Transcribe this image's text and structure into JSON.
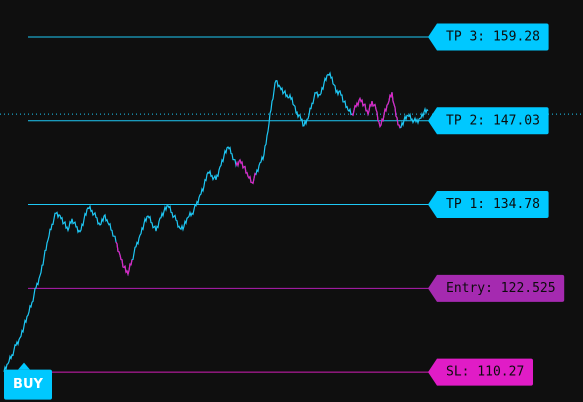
{
  "chart_data": {
    "type": "line",
    "y_range": [
      105.9,
      164.7
    ],
    "colors": {
      "background": "#0f0f0f",
      "price_up": "#1ec8f5",
      "price_down": "#e020c0",
      "tp_line": "#1ec8f5",
      "entry_line": "#b21fb3",
      "sl_line": "#d41fb8",
      "tp_label_bg": "#00c8ff",
      "entry_label_bg": "#a52ab0",
      "sl_label_bg": "#e01cc6",
      "label_text": "#0c0c0c",
      "dotted_line": "#1ec8f5"
    },
    "levels": [
      {
        "key": "tp3",
        "label": "TP 3: 159.28",
        "value": 159.28
      },
      {
        "key": "tp2",
        "label": "TP 2: 147.03",
        "value": 147.03
      },
      {
        "key": "tp1",
        "label": "TP 1: 134.78",
        "value": 134.78
      },
      {
        "key": "entry",
        "label": "Entry: 122.525",
        "value": 122.525
      },
      {
        "key": "sl",
        "label": "SL: 110.27",
        "value": 110.27
      }
    ],
    "current_price": 148.0,
    "signal": {
      "label": "BUY",
      "price": 111.8
    },
    "series": [
      {
        "values": [
          110.3,
          111.5,
          112.8,
          114.2,
          115.3,
          117.0,
          118.6,
          120.5,
          122.6,
          124.4,
          127.0,
          129.6,
          131.9,
          133.5,
          133.2,
          132.1,
          131.0,
          132.7,
          131.5,
          130.8,
          132.6,
          134.3,
          133.9,
          132.9,
          131.8,
          133.1,
          132.1,
          131.0,
          129.3,
          127.4,
          125.6,
          124.6,
          126.7,
          128.6,
          130.3,
          132.0,
          133.1,
          132.1,
          130.9,
          132.8,
          133.8,
          134.6,
          133.6,
          132.5,
          131.3,
          131.6,
          132.9,
          133.5,
          134.6,
          136.2,
          137.5,
          139.5,
          139.0,
          138.4,
          140.3,
          141.9,
          143.2,
          142.2,
          140.5,
          141.3,
          140.3,
          138.9,
          138.0,
          139.2,
          140.9,
          142.1,
          145.5,
          149.9,
          152.9,
          152.0,
          151.2,
          150.4,
          150.4,
          148.2,
          147.8,
          146.3,
          147.3,
          149.6,
          151.1,
          150.8,
          152.5,
          153.8,
          153.4,
          151.2,
          151.4,
          149.8,
          148.6,
          148.0,
          149.1,
          150.3,
          149.4,
          148.0,
          149.9,
          148.7,
          146.2,
          147.9,
          149.5,
          151.2,
          147.7,
          146.0,
          147.1,
          147.8,
          147.3,
          146.9,
          147.4,
          148.3,
          148.5
        ]
      },
      {
        "values": [
          null,
          null,
          null,
          null,
          null,
          null,
          null,
          null,
          null,
          null,
          null,
          null,
          null,
          null,
          null,
          null,
          null,
          null,
          null,
          null,
          null,
          null,
          null,
          null,
          null,
          null,
          null,
          null,
          129.3,
          127.4,
          125.6,
          124.6,
          126.7,
          null,
          null,
          null,
          null,
          null,
          null,
          null,
          null,
          null,
          null,
          null,
          null,
          null,
          null,
          null,
          null,
          null,
          null,
          null,
          null,
          null,
          null,
          null,
          null,
          null,
          140.5,
          141.3,
          140.3,
          138.9,
          138.0,
          139.2,
          null,
          null,
          null,
          null,
          null,
          null,
          null,
          null,
          null,
          null,
          null,
          null,
          null,
          null,
          null,
          null,
          null,
          null,
          null,
          null,
          null,
          null,
          null,
          148.0,
          149.1,
          150.3,
          149.4,
          148.0,
          149.9,
          148.7,
          146.2,
          147.9,
          149.5,
          151.2,
          147.7,
          146.0,
          null,
          null,
          null,
          null,
          null,
          null
        ]
      }
    ]
  }
}
